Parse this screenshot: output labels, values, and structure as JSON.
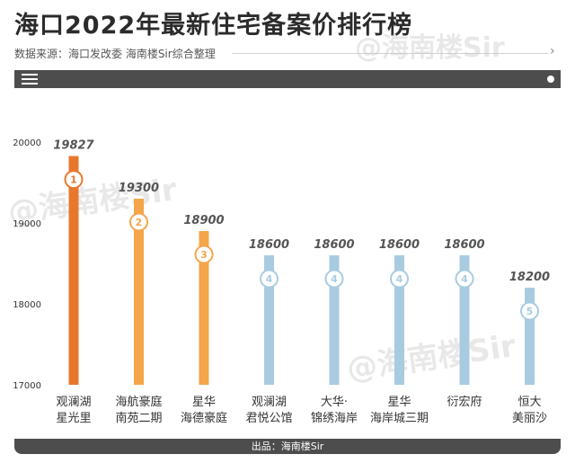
{
  "header": {
    "title": "海口2022年最新住宅备案价排行榜",
    "source": "数据来源：海口发改委 海南楼Sir综合整理"
  },
  "footer": {
    "text": "出品：海南楼Sir"
  },
  "watermark": "@海南楼Sir",
  "colors": {
    "orange_dark": "#e8772e",
    "orange": "#f5a54a",
    "blue": "#a9cbe0",
    "bar_dark": "#4d4d4d"
  },
  "chart_data": {
    "type": "bar",
    "categories": [
      [
        "观澜湖",
        "星光里"
      ],
      [
        "海航豪庭",
        "南苑二期"
      ],
      [
        "星华",
        "海德豪庭"
      ],
      [
        "观澜湖",
        "君悦公馆"
      ],
      [
        "大华·",
        "锦绣海岸"
      ],
      [
        "星华",
        "海岸城三期"
      ],
      [
        "衍宏府",
        ""
      ],
      [
        "恒大",
        "美丽沙"
      ]
    ],
    "values": [
      19827,
      19300,
      18900,
      18600,
      18600,
      18600,
      18600,
      18200
    ],
    "ranks": [
      "1",
      "2",
      "3",
      "4",
      "4",
      "4",
      "4",
      "5"
    ],
    "bar_colors": [
      "#e8772e",
      "#f5a54a",
      "#f5a54a",
      "#a9cbe0",
      "#a9cbe0",
      "#a9cbe0",
      "#a9cbe0",
      "#a9cbe0"
    ],
    "yticks": [
      17000,
      18000,
      19000,
      20000
    ],
    "ylim": [
      17000,
      20000
    ],
    "grid": false,
    "legend": "none"
  }
}
